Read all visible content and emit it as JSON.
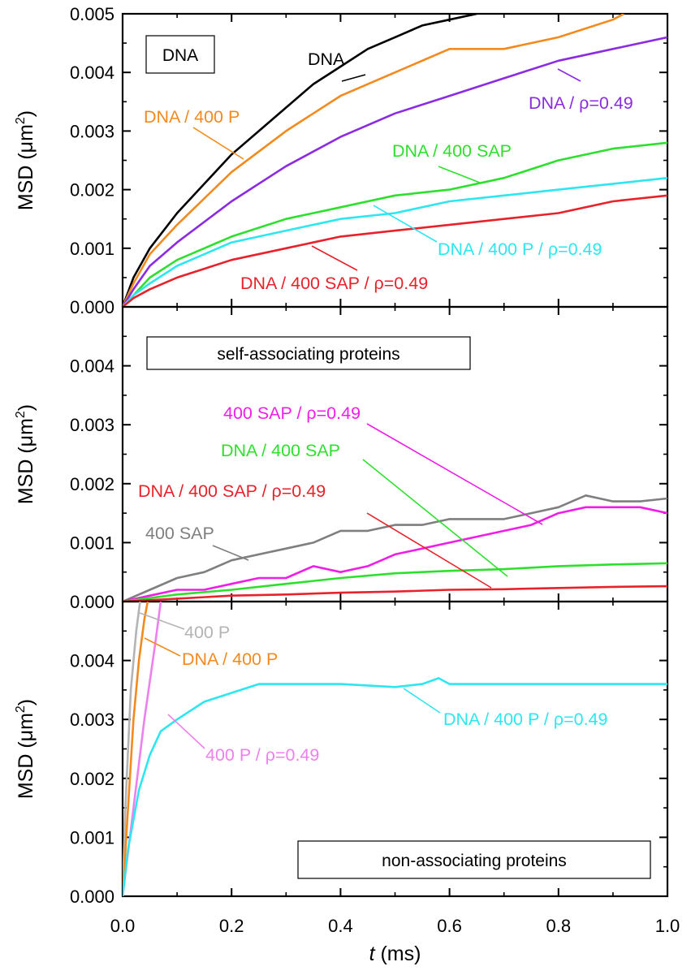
{
  "chart_data": {
    "type": "line",
    "xlabel": "t (ms)",
    "xlabel_italic": "t",
    "xlabel_unit": " (ms)",
    "xlim": [
      0.0,
      1.0
    ],
    "x_ticks": [
      "0.0",
      "0.2",
      "0.4",
      "0.6",
      "0.8",
      "1.0"
    ],
    "ylabel": "MSD (μm²)",
    "panels": [
      {
        "id": "top",
        "box_label": "DNA",
        "ylabel_main": "MSD (μm",
        "ylabel_sup": "2",
        "ylabel_close": ")",
        "ylim": [
          0,
          0.005
        ],
        "y_ticks": [
          "0.000",
          "0.001",
          "0.002",
          "0.003",
          "0.004",
          "0.005"
        ],
        "series": [
          {
            "name": "DNA",
            "label": "DNA",
            "color": "#000000",
            "x": [
              0,
              0.02,
              0.05,
              0.1,
              0.15,
              0.2,
              0.25,
              0.3,
              0.35,
              0.4,
              0.45,
              0.5,
              0.55,
              0.6,
              0.65
            ],
            "y": [
              0,
              0.0005,
              0.001,
              0.0016,
              0.0021,
              0.0026,
              0.003,
              0.0034,
              0.0038,
              0.0041,
              0.0044,
              0.0046,
              0.0048,
              0.0049,
              0.005
            ]
          },
          {
            "name": "DNA / 400 P",
            "label": "DNA / 400 P",
            "color": "#f28a1e",
            "x": [
              0,
              0.02,
              0.05,
              0.1,
              0.2,
              0.3,
              0.4,
              0.5,
              0.6,
              0.7,
              0.8,
              0.9,
              0.92
            ],
            "y": [
              0,
              0.0004,
              0.0009,
              0.0014,
              0.0023,
              0.003,
              0.0036,
              0.004,
              0.0044,
              0.0044,
              0.0046,
              0.0049,
              0.005
            ]
          },
          {
            "name": "DNA / ρ=0.49",
            "label": "DNA / ρ=0.49",
            "color": "#8b2be2",
            "x": [
              0,
              0.02,
              0.05,
              0.1,
              0.2,
              0.3,
              0.4,
              0.5,
              0.6,
              0.7,
              0.8,
              0.9,
              1.0
            ],
            "y": [
              0,
              0.0003,
              0.0007,
              0.0011,
              0.0018,
              0.0024,
              0.0029,
              0.0033,
              0.0036,
              0.0039,
              0.0042,
              0.0044,
              0.0046
            ]
          },
          {
            "name": "DNA / 400 SAP",
            "label": "DNA / 400 SAP",
            "color": "#2ee02e",
            "x": [
              0,
              0.02,
              0.05,
              0.1,
              0.2,
              0.3,
              0.4,
              0.5,
              0.6,
              0.7,
              0.8,
              0.9,
              1.0
            ],
            "y": [
              0,
              0.0002,
              0.0005,
              0.0008,
              0.0012,
              0.0015,
              0.0017,
              0.0019,
              0.002,
              0.0022,
              0.0025,
              0.0027,
              0.0028
            ]
          },
          {
            "name": "DNA / 400 P / ρ=0.49",
            "label": "DNA / 400 P / ρ=0.49",
            "color": "#2ee6f0",
            "x": [
              0,
              0.02,
              0.05,
              0.1,
              0.2,
              0.3,
              0.4,
              0.5,
              0.6,
              0.7,
              0.8,
              0.9,
              1.0
            ],
            "y": [
              0,
              0.0002,
              0.0004,
              0.0007,
              0.0011,
              0.0013,
              0.0015,
              0.0016,
              0.0018,
              0.0019,
              0.002,
              0.0021,
              0.0022
            ]
          },
          {
            "name": "DNA / 400 SAP / ρ=0.49",
            "label": "DNA / 400 SAP / ρ=0.49",
            "color": "#e8222a",
            "x": [
              0,
              0.02,
              0.05,
              0.1,
              0.2,
              0.3,
              0.4,
              0.5,
              0.6,
              0.7,
              0.8,
              0.9,
              1.0
            ],
            "y": [
              0,
              0.00015,
              0.0003,
              0.0005,
              0.0008,
              0.001,
              0.0012,
              0.0013,
              0.0014,
              0.0015,
              0.0016,
              0.0018,
              0.0019
            ]
          }
        ]
      },
      {
        "id": "middle",
        "box_label": "self-associating proteins",
        "ylabel_main": "MSD (μm",
        "ylabel_sup": "2",
        "ylabel_close": ")",
        "ylim": [
          0,
          0.005
        ],
        "y_ticks": [
          "0.000",
          "0.001",
          "0.002",
          "0.003",
          "0.004"
        ],
        "series": [
          {
            "name": "400 SAP",
            "label": "400 SAP",
            "color": "#7f7f7f",
            "x": [
              0,
              0.05,
              0.1,
              0.15,
              0.2,
              0.25,
              0.3,
              0.35,
              0.4,
              0.45,
              0.5,
              0.55,
              0.6,
              0.65,
              0.7,
              0.75,
              0.8,
              0.85,
              0.9,
              0.95,
              1.0
            ],
            "y": [
              0,
              0.0002,
              0.0004,
              0.0005,
              0.0007,
              0.0008,
              0.0009,
              0.001,
              0.0012,
              0.0012,
              0.0013,
              0.0013,
              0.0014,
              0.0014,
              0.0014,
              0.0015,
              0.0016,
              0.0018,
              0.0017,
              0.0017,
              0.00175
            ]
          },
          {
            "name": "400 SAP / ρ=0.49",
            "label": "400 SAP / ρ=0.49",
            "color": "#ee1ee6",
            "x": [
              0,
              0.05,
              0.1,
              0.15,
              0.2,
              0.25,
              0.3,
              0.35,
              0.4,
              0.45,
              0.5,
              0.55,
              0.6,
              0.65,
              0.7,
              0.75,
              0.8,
              0.85,
              0.9,
              0.95,
              1.0
            ],
            "y": [
              0,
              0.0001,
              0.0002,
              0.0002,
              0.0003,
              0.0004,
              0.0004,
              0.0006,
              0.0005,
              0.0006,
              0.0008,
              0.0009,
              0.001,
              0.0011,
              0.0012,
              0.0013,
              0.0015,
              0.0016,
              0.0016,
              0.0016,
              0.0015
            ]
          },
          {
            "name": "DNA / 400 SAP",
            "label": "DNA / 400 SAP",
            "color": "#2ee02e",
            "x": [
              0,
              0.1,
              0.2,
              0.3,
              0.4,
              0.5,
              0.6,
              0.7,
              0.8,
              0.9,
              1.0
            ],
            "y": [
              0,
              0.00012,
              0.0002,
              0.0003,
              0.0004,
              0.00048,
              0.00052,
              0.00055,
              0.0006,
              0.00063,
              0.00065
            ]
          },
          {
            "name": "DNA / 400 SAP / ρ=0.49",
            "label": "DNA / 400 SAP / ρ=0.49",
            "color": "#e8222a",
            "x": [
              0,
              0.1,
              0.2,
              0.3,
              0.4,
              0.5,
              0.6,
              0.7,
              0.8,
              0.9,
              1.0
            ],
            "y": [
              0,
              5e-05,
              0.0001,
              0.00012,
              0.00015,
              0.00017,
              0.0002,
              0.00021,
              0.00023,
              0.00025,
              0.00026
            ]
          }
        ]
      },
      {
        "id": "bottom",
        "box_label": "non-associating proteins",
        "ylabel_main": "MSD (μm",
        "ylabel_sup": "2",
        "ylabel_close": ")",
        "ylim": [
          0,
          0.005
        ],
        "y_ticks": [
          "0.000",
          "0.001",
          "0.002",
          "0.003",
          "0.004"
        ],
        "series": [
          {
            "name": "400 P",
            "label": "400 P",
            "color": "#b4b4b4",
            "x": [
              0,
              0.005,
              0.015,
              0.025,
              0.032
            ],
            "y": [
              0,
              0.0015,
              0.0035,
              0.0045,
              0.005
            ]
          },
          {
            "name": "DNA / 400 P",
            "label": "DNA / 400 P",
            "color": "#f28a1e",
            "x": [
              0,
              0.01,
              0.02,
              0.03,
              0.04,
              0.046
            ],
            "y": [
              0,
              0.0015,
              0.003,
              0.004,
              0.0047,
              0.005
            ]
          },
          {
            "name": "400 P / ρ=0.49",
            "label": "400 P / ρ=0.49",
            "color": "#ee80ee",
            "x": [
              0,
              0.02,
              0.04,
              0.06,
              0.07
            ],
            "y": [
              0,
              0.0015,
              0.003,
              0.0043,
              0.005
            ]
          },
          {
            "name": "DNA / 400 P / ρ=0.49",
            "label": "DNA / 400 P / ρ=0.49",
            "color": "#2ee6f0",
            "x": [
              0,
              0.01,
              0.02,
              0.03,
              0.05,
              0.07,
              0.1,
              0.15,
              0.2,
              0.25,
              0.3,
              0.4,
              0.5,
              0.55,
              0.58,
              0.6,
              0.7,
              0.8,
              0.9,
              1.0
            ],
            "y": [
              0,
              0.0008,
              0.0013,
              0.0018,
              0.0024,
              0.0028,
              0.003,
              0.0033,
              0.00345,
              0.0036,
              0.0036,
              0.0036,
              0.00355,
              0.0036,
              0.0037,
              0.0036,
              0.0036,
              0.0036,
              0.0036,
              0.0036
            ]
          }
        ]
      }
    ]
  }
}
